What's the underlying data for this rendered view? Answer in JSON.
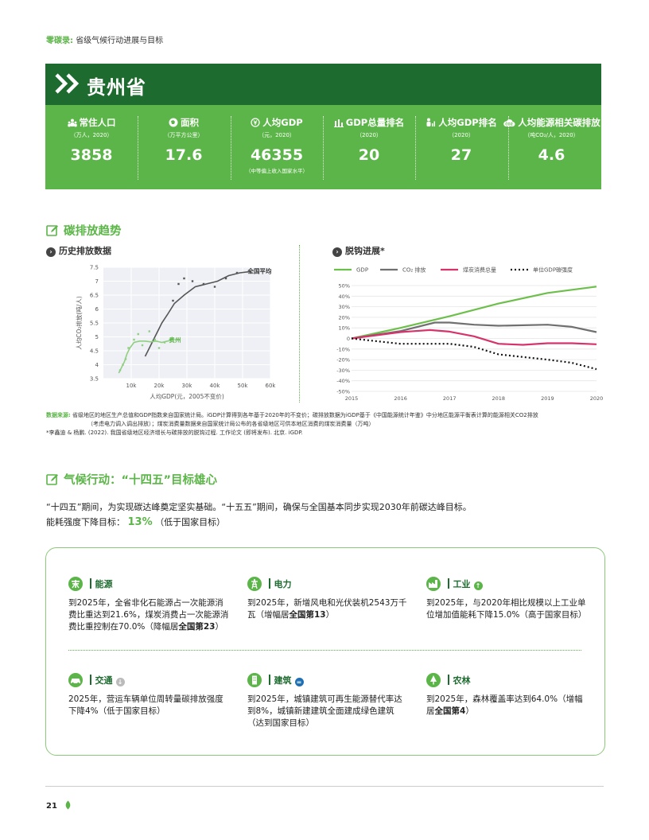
{
  "header": {
    "kicker_label": "零碳录:",
    "kicker_title": "省级气候行动进展与目标"
  },
  "province": {
    "name": "贵州省"
  },
  "stats": [
    {
      "label": "常住人口",
      "unit": "（万人，2020）",
      "value": "3858",
      "note": "",
      "icon": "people-icon"
    },
    {
      "label": "面积",
      "unit": "（万平方公里）",
      "value": "17.6",
      "note": "",
      "icon": "area-icon"
    },
    {
      "label": "人均GDP",
      "unit": "（元，2020）",
      "value": "46355",
      "note": "（中等偏上收入国家水平）",
      "icon": "yuan-icon"
    },
    {
      "label": "GDP总量排名",
      "unit": "（2020）",
      "value": "20",
      "note": "",
      "icon": "bar-chart-icon"
    },
    {
      "label": "人均GDP排名",
      "unit": "（2020）",
      "value": "27",
      "note": "",
      "icon": "person-rank-icon"
    },
    {
      "label": "人均能源相关碳排放",
      "unit": "（吨CO₂/人，2020）",
      "value": "4.6",
      "note": "",
      "icon": "co2-cloud-icon"
    }
  ],
  "section1": {
    "title": "碳排放趋势",
    "sub_left": "历史排放数据",
    "sub_right": "脱钩进展*"
  },
  "chart_data": [
    {
      "type": "scatter",
      "title": "历史排放数据",
      "xlabel": "人均GDP(元，2005不变价)",
      "ylabel": "人均CO₂排放(吨/人)",
      "xlim": [
        0,
        60000
      ],
      "ylim": [
        3.5,
        7.5
      ],
      "xticks": [
        10000,
        20000,
        30000,
        40000,
        50000,
        60000
      ],
      "xtick_labels": [
        "10k",
        "20k",
        "30k",
        "40k",
        "50k",
        "60k"
      ],
      "yticks": [
        3.5,
        4,
        4.5,
        5,
        5.5,
        6,
        6.5,
        7,
        7.5
      ],
      "ytick_labels": [
        "3.5",
        "4",
        "4.5",
        "5",
        "5.5",
        "6",
        "6.5",
        "7",
        "7.5"
      ],
      "background": "#eef0f5",
      "series": [
        {
          "name": "全国平均",
          "color": "#555555",
          "points": [
            [
              15000,
              4.3
            ],
            [
              16500,
              4.6
            ],
            [
              18000,
              4.9
            ],
            [
              19500,
              5.2
            ],
            [
              21000,
              5.5
            ],
            [
              23000,
              5.8
            ],
            [
              25500,
              6.2
            ],
            [
              29000,
              6.5
            ],
            [
              33000,
              6.8
            ],
            [
              37000,
              6.9
            ],
            [
              41000,
              7.0
            ],
            [
              45000,
              7.2
            ],
            [
              49000,
              7.3
            ],
            [
              53000,
              7.35
            ]
          ],
          "scatter": [
            [
              25000,
              6.3
            ],
            [
              27000,
              6.9
            ],
            [
              29000,
              7.1
            ],
            [
              32000,
              7.0
            ],
            [
              36000,
              6.9
            ],
            [
              40000,
              6.8
            ],
            [
              44000,
              7.1
            ],
            [
              48000,
              7.3
            ]
          ]
        },
        {
          "name": "贵州",
          "color": "#8fcf7f",
          "points": [
            [
              5500,
              3.7
            ],
            [
              6500,
              3.9
            ],
            [
              7500,
              4.1
            ],
            [
              8500,
              4.4
            ],
            [
              9500,
              4.6
            ],
            [
              11000,
              4.8
            ],
            [
              13000,
              4.85
            ],
            [
              15000,
              4.85
            ],
            [
              17000,
              4.82
            ],
            [
              19000,
              4.85
            ],
            [
              21000,
              4.8
            ],
            [
              23000,
              4.85
            ],
            [
              25000,
              4.9
            ]
          ],
          "scatter": [
            [
              6000,
              3.8
            ],
            [
              7000,
              4.0
            ],
            [
              8000,
              4.2
            ],
            [
              9000,
              4.6
            ],
            [
              11000,
              4.9
            ],
            [
              12500,
              5.1
            ],
            [
              14000,
              4.7
            ],
            [
              16500,
              5.2
            ],
            [
              18500,
              4.9
            ],
            [
              20000,
              4.6
            ],
            [
              22000,
              4.8
            ],
            [
              24000,
              4.9
            ]
          ]
        }
      ]
    },
    {
      "type": "line",
      "title": "脱钩进展*",
      "x": [
        2015,
        2016,
        2017,
        2018,
        2019,
        2020
      ],
      "xtick_labels": [
        "2015",
        "2016",
        "2017",
        "2018",
        "2019",
        "2020"
      ],
      "ylim": [
        -50,
        50
      ],
      "yticks": [
        50,
        40,
        30,
        20,
        10,
        0,
        -10,
        -20,
        -30,
        -40,
        -50
      ],
      "ytick_labels": [
        "50%",
        "40%",
        "30%",
        "20%",
        "10%",
        "0",
        "-10%",
        "-20%",
        "-30%",
        "-40%",
        "-50%"
      ],
      "legend_position": "top",
      "series": [
        {
          "name": "GDP",
          "color": "#6dbf4b",
          "style": "solid",
          "values": [
            [
              2015,
              0
            ],
            [
              2016,
              10
            ],
            [
              2017,
              21
            ],
            [
              2018,
              33
            ],
            [
              2019,
              43
            ],
            [
              2020,
              49
            ]
          ]
        },
        {
          "name": "CO₂ 排放",
          "color": "#707070",
          "style": "solid",
          "values": [
            [
              2015,
              0
            ],
            [
              2016,
              7
            ],
            [
              2016.7,
              15
            ],
            [
              2017,
              15
            ],
            [
              2017.5,
              13
            ],
            [
              2018,
              12
            ],
            [
              2018.5,
              12.5
            ],
            [
              2019,
              13
            ],
            [
              2019.5,
              11
            ],
            [
              2020,
              6
            ]
          ]
        },
        {
          "name": "煤炭消费总量",
          "color": "#d6336c",
          "style": "solid",
          "values": [
            [
              2015,
              0
            ],
            [
              2016,
              6
            ],
            [
              2016.6,
              8
            ],
            [
              2017,
              6.5
            ],
            [
              2017.5,
              2
            ],
            [
              2018,
              -5
            ],
            [
              2018.5,
              -6
            ],
            [
              2019,
              -4.5
            ],
            [
              2019.5,
              -4.5
            ],
            [
              2020,
              -5.5
            ]
          ]
        },
        {
          "name": "单位GDP碳强度",
          "color": "#111111",
          "style": "dotted",
          "values": [
            [
              2015,
              0
            ],
            [
              2016,
              -5
            ],
            [
              2017,
              -5
            ],
            [
              2017.5,
              -8
            ],
            [
              2018,
              -15
            ],
            [
              2019,
              -20
            ],
            [
              2019.5,
              -23
            ],
            [
              2020,
              -29
            ]
          ]
        }
      ]
    }
  ],
  "sources": {
    "label": "数据来源:",
    "line1": "省级地区的地区生产总值和GDP指数来自国家统计局。iGDP计算得到各年基于2020年的不变价；碳排放数据为iGDP基于《中国能源统计年鉴》中分地区能源平衡表计算的能源相关CO2排放",
    "line2": "（考虑电力调入调出排放）；煤炭消费量数据来自国家统计局公布的各省级地区可供本地区消费的煤炭消费量（万吨）",
    "footnote": "*李鑫迪 & 杨鹏. (2022). 我国省级地区经济增长与碳排放的脱钩过程. 工作论文 (即将发布). 北京. iGDP."
  },
  "section2": {
    "title": "气候行动：“十四五”目标雄心",
    "intro": "“十四五”期间，为实现碳达峰奠定坚实基础。“十五五”期间，确保与全国基本同步实现2030年前碳达峰目标。",
    "target_label": "能耗强度下降目标：",
    "target_value": "13%",
    "target_note": "（低于国家目标）"
  },
  "targets": [
    {
      "name": "能源",
      "icon": "energy-icon",
      "marker": "",
      "parts": [
        "到2025年，全省非化石能源占一次能源消费比重达到21.6%，煤炭消费占一次能源消费比重控制在70.0%（降幅居",
        "全国第23",
        "）"
      ]
    },
    {
      "name": "电力",
      "icon": "power-tower-icon",
      "marker": "",
      "parts": [
        "到2025年，新增风电和光伏装机2543万千瓦（增幅居",
        "全国第13",
        "）"
      ]
    },
    {
      "name": "工业",
      "icon": "factory-icon",
      "marker": "up",
      "parts": [
        "到2025年，与2020年相比规模以上工业单位增加值能耗下降15.0%（高于国家目标）",
        "",
        ""
      ]
    },
    {
      "name": "交通",
      "icon": "car-icon",
      "marker": "down",
      "parts": [
        "2025年，营运车辆单位周转量碳排放强度下降4%（低于国家目标）",
        "",
        ""
      ]
    },
    {
      "name": "建筑",
      "icon": "building-icon",
      "marker": "equal",
      "parts": [
        "到2025年，城镇建筑可再生能源替代率达到8%，城镇新建建筑全面建成绿色建筑（达到国家目标）",
        "",
        ""
      ]
    },
    {
      "name": "农林",
      "icon": "tree-icon",
      "marker": "",
      "parts": [
        "到2025年，森林覆盖率达到64.0%（增幅居",
        "全国第4",
        "）"
      ]
    }
  ],
  "footer": {
    "page": "21"
  },
  "colors": {
    "dark_green": "#1e6b2f",
    "green": "#5cb548",
    "light_green": "#8cc97b",
    "pink": "#d6336c",
    "gray": "#707070"
  }
}
